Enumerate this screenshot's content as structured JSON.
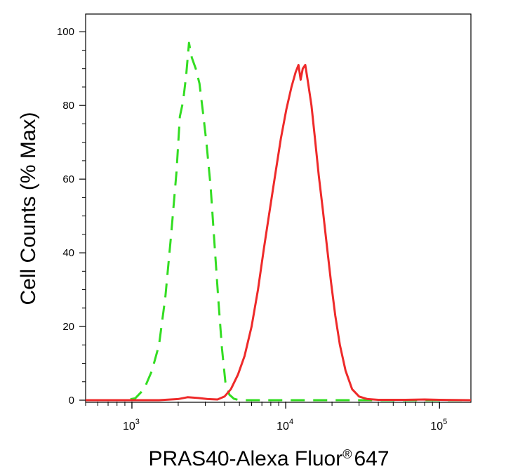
{
  "chart_data": {
    "type": "line",
    "title": "",
    "xlabel": "PRAS40-Alexa Fluor",
    "xlabel_mark": "®",
    "xlabel_suffix": "647",
    "ylabel": "Cell Counts (% Max)",
    "x_scale": "log",
    "xlim": [
      500,
      160000
    ],
    "ylim": [
      0,
      105
    ],
    "grid": false,
    "y_ticks": [
      0,
      20,
      40,
      60,
      80,
      100
    ],
    "x_ticks": [
      {
        "value": 1000,
        "base": "10",
        "exp": "3"
      },
      {
        "value": 10000,
        "base": "10",
        "exp": "4"
      },
      {
        "value": 100000,
        "base": "10",
        "exp": "5"
      }
    ],
    "series": [
      {
        "color": "#33dd22",
        "dash": "dashed",
        "points": [
          [
            500,
            0
          ],
          [
            900,
            0
          ],
          [
            1050,
            0.5
          ],
          [
            1200,
            3
          ],
          [
            1350,
            8
          ],
          [
            1500,
            15
          ],
          [
            1650,
            28
          ],
          [
            1800,
            45
          ],
          [
            1950,
            62
          ],
          [
            2050,
            77
          ],
          [
            2150,
            81
          ],
          [
            2250,
            88
          ],
          [
            2350,
            97
          ],
          [
            2450,
            93
          ],
          [
            2600,
            90
          ],
          [
            2750,
            86
          ],
          [
            2900,
            78
          ],
          [
            3050,
            70
          ],
          [
            3250,
            58
          ],
          [
            3450,
            42
          ],
          [
            3650,
            27
          ],
          [
            3850,
            14
          ],
          [
            4050,
            5
          ],
          [
            4300,
            1.5
          ],
          [
            4600,
            0.4
          ],
          [
            5000,
            0
          ],
          [
            160000,
            0
          ]
        ]
      },
      {
        "color": "#ee2a2a",
        "dash": "solid",
        "points": [
          [
            500,
            0
          ],
          [
            1500,
            0
          ],
          [
            2000,
            0.3
          ],
          [
            2300,
            0.8
          ],
          [
            2700,
            0.6
          ],
          [
            3100,
            0.3
          ],
          [
            3600,
            0.2
          ],
          [
            4000,
            1
          ],
          [
            4400,
            3
          ],
          [
            4900,
            7
          ],
          [
            5400,
            12
          ],
          [
            6000,
            20
          ],
          [
            6600,
            30
          ],
          [
            7200,
            41
          ],
          [
            7900,
            52
          ],
          [
            8600,
            62
          ],
          [
            9300,
            71
          ],
          [
            10100,
            79
          ],
          [
            10900,
            85
          ],
          [
            11600,
            89
          ],
          [
            12100,
            91
          ],
          [
            12500,
            87
          ],
          [
            12900,
            90
          ],
          [
            13400,
            91
          ],
          [
            14000,
            86
          ],
          [
            14700,
            80
          ],
          [
            15500,
            71
          ],
          [
            16400,
            61
          ],
          [
            17400,
            52
          ],
          [
            18500,
            42
          ],
          [
            19700,
            32
          ],
          [
            21000,
            23
          ],
          [
            22500,
            15
          ],
          [
            24500,
            8
          ],
          [
            27000,
            3
          ],
          [
            30000,
            1
          ],
          [
            34000,
            0.3
          ],
          [
            40000,
            0.1
          ],
          [
            60000,
            0.1
          ],
          [
            80000,
            0.2
          ],
          [
            100000,
            0.1
          ],
          [
            160000,
            0
          ]
        ]
      }
    ]
  }
}
